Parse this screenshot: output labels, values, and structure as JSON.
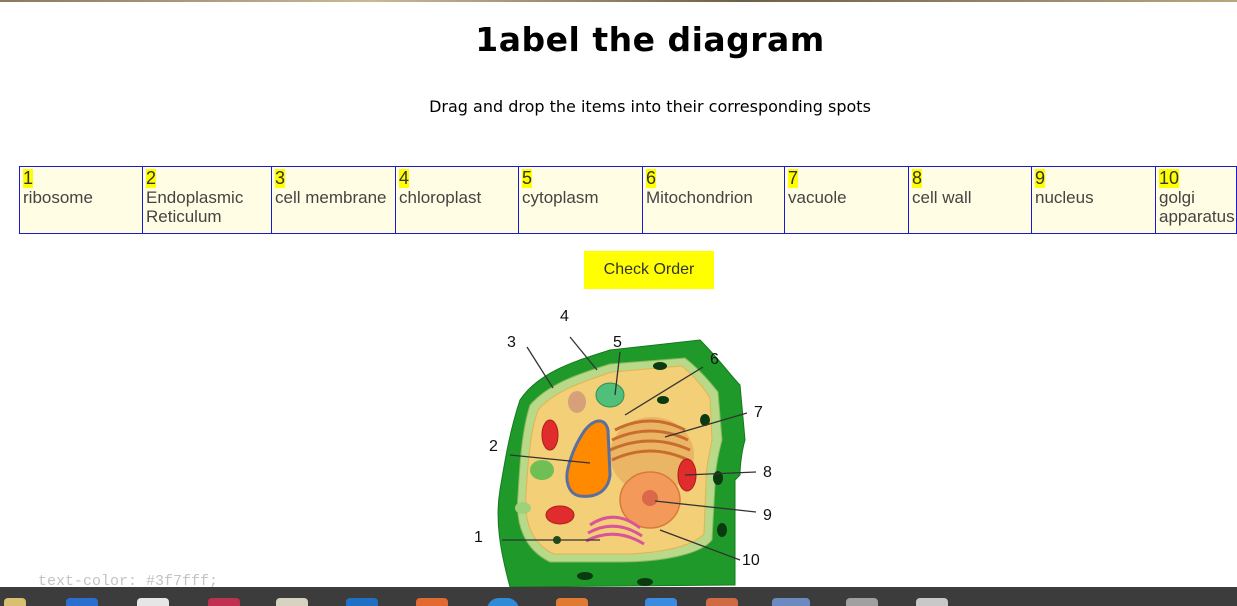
{
  "page": {
    "title": "1abel the diagram",
    "instructions": "Drag and drop the items into their corresponding spots",
    "check_button": "Check Order"
  },
  "items": [
    {
      "num": "1",
      "label": "ribosome"
    },
    {
      "num": "2",
      "label": "Endoplasmic Reticulum"
    },
    {
      "num": "3",
      "label": "cell membrane"
    },
    {
      "num": "4",
      "label": "chloroplast"
    },
    {
      "num": "5",
      "label": "cytoplasm"
    },
    {
      "num": "6",
      "label": "Mitochondrion"
    },
    {
      "num": "7",
      "label": "vacuole"
    },
    {
      "num": "8",
      "label": "cell wall"
    },
    {
      "num": "9",
      "label": "nucleus"
    },
    {
      "num": "10",
      "label": "golgi apparatus"
    }
  ],
  "diagram": {
    "labels": [
      "1",
      "2",
      "3",
      "4",
      "5",
      "6",
      "7",
      "8",
      "9",
      "10"
    ]
  },
  "colors": {
    "item_bg": "#fffde3",
    "item_border": "#1a1ad0",
    "highlight": "#ffff00",
    "cell_wall": "#1f9a2a",
    "cytoplasm": "#f3cf77",
    "nucleus": "#f39a5a"
  },
  "taskbar": {
    "ghost_text": "text-color: #3f7fff;"
  }
}
